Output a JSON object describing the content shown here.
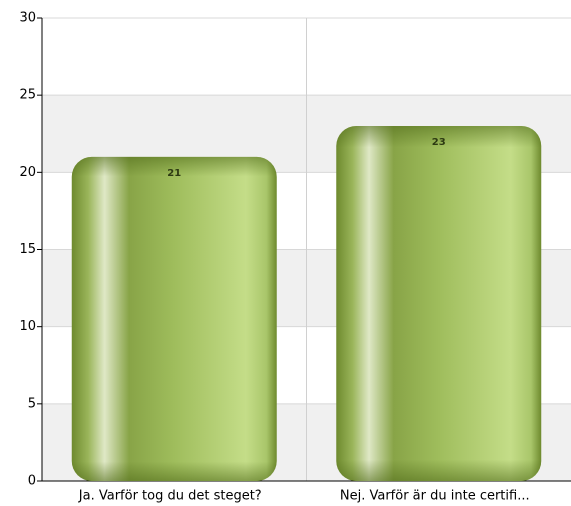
{
  "chart_data": {
    "type": "bar",
    "categories": [
      "Ja. Varför tog du det steget?",
      "Nej. Varför är du inte certifi..."
    ],
    "values": [
      21,
      23
    ],
    "color": "#8fae4a",
    "ylim": [
      0,
      30
    ],
    "yticks": [
      0,
      5,
      10,
      15,
      20,
      25,
      30
    ],
    "grid": true
  }
}
